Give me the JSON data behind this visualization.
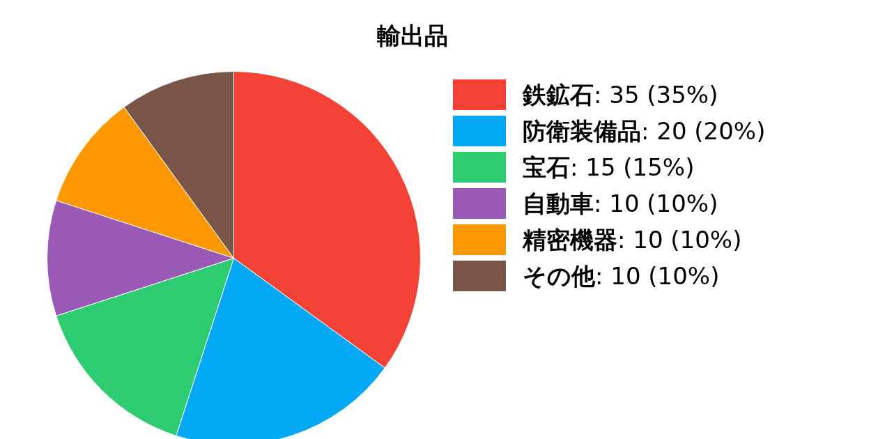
{
  "chart_data": {
    "type": "pie",
    "title": "輸出品",
    "categories": [
      "鉄鉱石",
      "防衛装備品",
      "宝石",
      "自動車",
      "精密機器",
      "その他"
    ],
    "values": [
      35,
      20,
      15,
      10,
      10,
      10
    ],
    "colors": [
      "#f44336",
      "#03a9f4",
      "#2ecc71",
      "#9b59b6",
      "#ff9800",
      "#795548"
    ],
    "value_labels": [
      ": 35 (35%)",
      ": 20 (20%)",
      ": 15 (15%)",
      ": 10 (10%)",
      ": 10 (10%)",
      ": 10 (10%)"
    ],
    "legend": "right"
  }
}
